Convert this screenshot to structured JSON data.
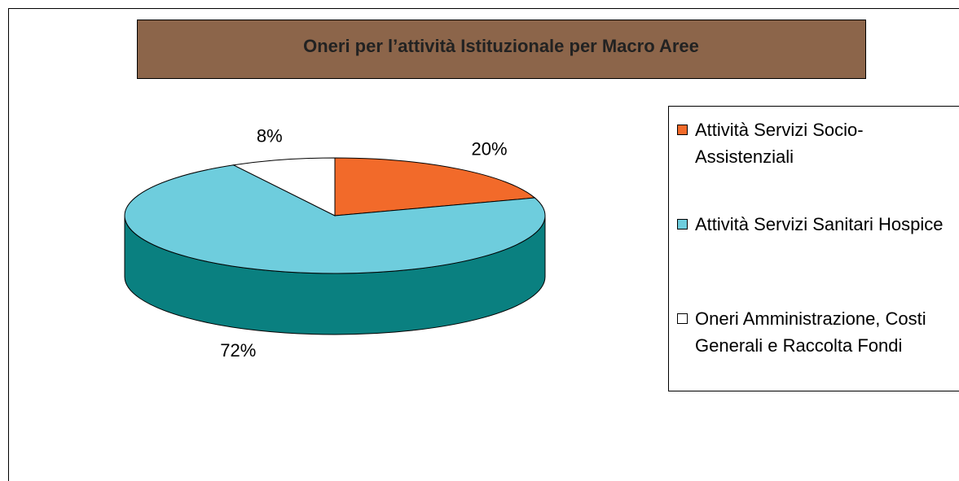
{
  "chart_data": {
    "type": "pie3d",
    "title": "Oneri per l’attività Istituzionale per Macro Aree",
    "categories": [
      "Attività Servizi Socio-Assistenziali",
      "Attività Servizi Sanitari Hospice",
      "Oneri Amministrazione, Costi Generali e Raccolta Fondi"
    ],
    "values": [
      20,
      72,
      8
    ],
    "value_labels": [
      "20%",
      "72%",
      "8%"
    ],
    "colors": [
      "#f26a2a",
      "#6ecddd",
      "#ffffff"
    ],
    "depth_colors": [
      "#b34a1a",
      "#0a8080",
      "#cccccc"
    ],
    "legend": "right"
  }
}
